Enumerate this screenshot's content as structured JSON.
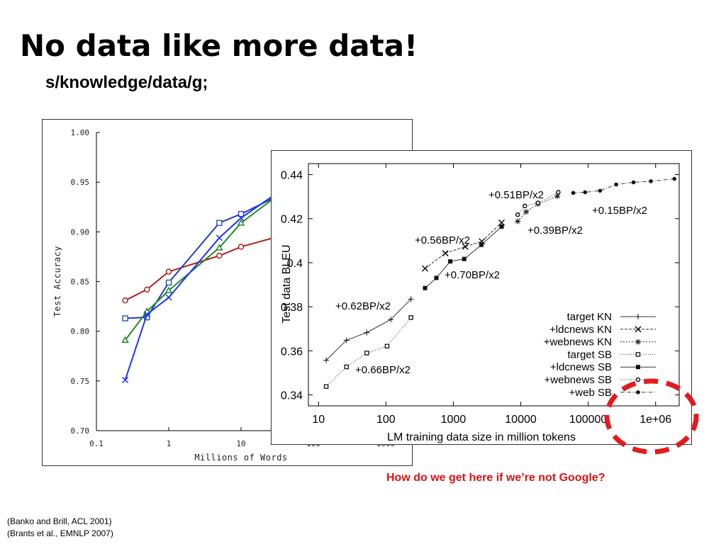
{
  "slide": {
    "title": "No data like more data!",
    "subtitle": "s/knowledge/data/g;",
    "question": "How do we get here if we’re not Google?",
    "citations": [
      "(Banko and Brill, ACL 2001)",
      "(Brants et al., EMNLP 2007)"
    ]
  },
  "colors": {
    "question": "#dd1111",
    "circle": "#e41a1c"
  },
  "chart_data": [
    {
      "type": "line",
      "title": "",
      "xlabel": "Millions of Words",
      "ylabel": "Test Accuracy",
      "xscale": "log",
      "xlim": [
        0.1,
        1000
      ],
      "ylim": [
        0.7,
        1.0
      ],
      "xticks": [
        "0.1",
        "1",
        "10",
        "100",
        "1000"
      ],
      "xtick_values": [
        0.1,
        1,
        10,
        100,
        1000
      ],
      "yticks": [
        "0.70",
        "0.75",
        "0.80",
        "0.85",
        "0.90",
        "0.95",
        "1.00"
      ],
      "ytick_values": [
        0.7,
        0.75,
        0.8,
        0.85,
        0.9,
        0.95,
        1.0
      ],
      "grid": false,
      "legend": "none",
      "series": [
        {
          "color": "#b22222",
          "marker": "circle",
          "x": [
            0.25,
            0.5,
            1,
            5,
            10,
            100
          ],
          "y": [
            0.831,
            0.842,
            0.86,
            0.876,
            0.885,
            0.905
          ]
        },
        {
          "color": "#1f3fbf",
          "marker": "square",
          "x": [
            0.25,
            0.5,
            1,
            5,
            10,
            30
          ],
          "y": [
            0.813,
            0.814,
            0.849,
            0.909,
            0.918,
            0.935
          ]
        },
        {
          "color": "#228b22",
          "marker": "triangle",
          "x": [
            0.25,
            0.5,
            1,
            5,
            10,
            30
          ],
          "y": [
            0.791,
            0.82,
            0.841,
            0.884,
            0.909,
            0.935
          ]
        },
        {
          "color": "#1e32ff",
          "marker": "x",
          "x": [
            0.25,
            0.5,
            1,
            5,
            10,
            30
          ],
          "y": [
            0.751,
            0.817,
            0.834,
            0.894,
            0.914,
            0.938
          ]
        }
      ]
    },
    {
      "type": "line",
      "title": "",
      "xlabel": "LM training data size in million tokens",
      "ylabel": "Test data BLEU",
      "xscale": "log",
      "xlim": [
        10,
        1000000
      ],
      "ylim": [
        0.335,
        0.445
      ],
      "xticks": [
        "10",
        "100",
        "1000",
        "10000",
        "100000",
        "1e+06"
      ],
      "xtick_values": [
        10,
        100,
        1000,
        10000,
        100000,
        1000000
      ],
      "yticks": [
        "0.34",
        "0.36",
        "0.38",
        "0.4",
        "0.42",
        "0.44"
      ],
      "ytick_values": [
        0.34,
        0.36,
        0.38,
        0.4,
        0.42,
        0.44
      ],
      "grid": false,
      "legend": "bottom-right",
      "series": [
        {
          "name": "target KN",
          "marker": "plus",
          "x": [
            13,
            26,
            52,
            118,
            235
          ],
          "y": [
            0.3557,
            0.3648,
            0.3683,
            0.3742,
            0.3835
          ]
        },
        {
          "name": "+ldcnews KN",
          "marker": "x",
          "x": [
            380,
            760,
            1500,
            2650,
            5200
          ],
          "y": [
            0.3974,
            0.4043,
            0.4073,
            0.4097,
            0.4182
          ]
        },
        {
          "name": "+webnews KN",
          "marker": "asterisk",
          "x": [
            9000,
            12000,
            18000,
            35000
          ],
          "y": [
            0.4188,
            0.4231,
            0.4267,
            0.4302
          ]
        },
        {
          "name": "target SB",
          "marker": "open-square",
          "x": [
            13,
            26,
            52,
            104,
            235
          ],
          "y": [
            0.3438,
            0.3527,
            0.359,
            0.3621,
            0.3751
          ]
        },
        {
          "name": "+ldcnews SB",
          "marker": "filled-square",
          "x": [
            380,
            560,
            900,
            1450,
            2600,
            5200
          ],
          "y": [
            0.3885,
            0.3931,
            0.4006,
            0.4017,
            0.4081,
            0.4164
          ]
        },
        {
          "name": "+webnews SB",
          "marker": "open-circle",
          "x": [
            9000,
            11500,
            18000,
            36000
          ],
          "y": [
            0.4218,
            0.4258,
            0.4272,
            0.432
          ]
        },
        {
          "name": "+web SB",
          "marker": "filled-circle",
          "x": [
            60000,
            90000,
            150000,
            260000,
            470000,
            850000,
            1900000
          ],
          "y": [
            0.4317,
            0.432,
            0.4327,
            0.4355,
            0.4365,
            0.437,
            0.4381
          ]
        }
      ],
      "annotations": [
        "+0.51BP/x2",
        "+0.15BP/x2",
        "+0.39BP/x2",
        "+0.56BP/x2",
        "+0.70BP/x2",
        "+0.62BP/x2",
        "+0.66BP/x2"
      ]
    }
  ]
}
